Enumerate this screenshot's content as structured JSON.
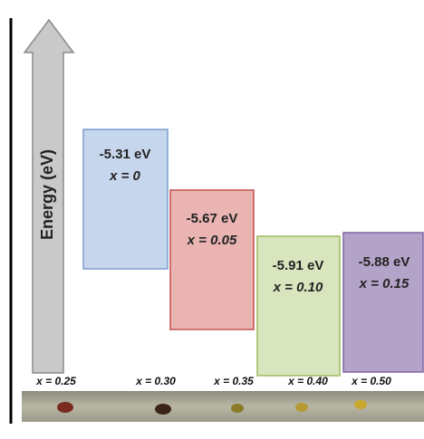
{
  "axis_label": "Energy (eV)",
  "levels": [
    {
      "energy": "-5.31 eV",
      "composition": "x = 0"
    },
    {
      "energy": "-5.67 eV",
      "composition": "x = 0.05"
    },
    {
      "energy": "-5.91 eV",
      "composition": "x = 0.10"
    },
    {
      "energy": "-5.88 eV",
      "composition": "x = 0.15"
    }
  ],
  "samples": [
    "x = 0.25",
    "x = 0.30",
    "x = 0.35",
    "x = 0.40",
    "x = 0.50"
  ]
}
